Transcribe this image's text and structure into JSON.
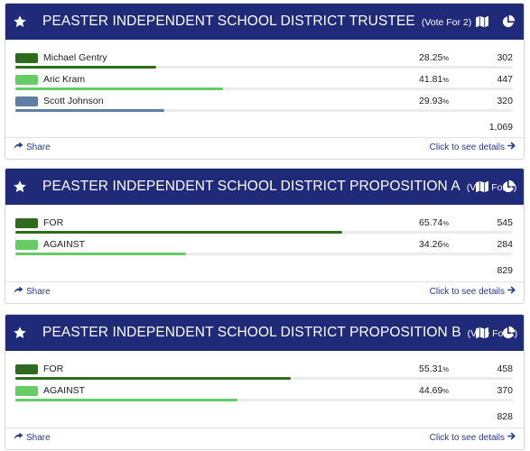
{
  "colors": {
    "header_bg": "#1f2a78",
    "dark_green": "#2f6b1f",
    "light_green": "#66cc66",
    "slate_blue": "#5f7fa3",
    "link": "#2a3a8a"
  },
  "icons": {
    "favorite": "star-icon",
    "map": "map-icon",
    "chart": "pie-chart-icon",
    "share": "share-arrow-icon",
    "details": "arrow-right-icon"
  },
  "races": [
    {
      "title": "PEASTER INDEPENDENT SCHOOL DISTRICT TRUSTEE",
      "vote_for": "(Vote For 2)",
      "candidates": [
        {
          "name": "Michael Gentry",
          "percent": "28.25",
          "percent_symbol": "%",
          "votes": "302",
          "bar_fraction": 0.2825,
          "color": "#2f6b1f"
        },
        {
          "name": "Aric Kram",
          "percent": "41.81",
          "percent_symbol": "%",
          "votes": "447",
          "bar_fraction": 0.4181,
          "color": "#66cc66"
        },
        {
          "name": "Scott Johnson",
          "percent": "29.93",
          "percent_symbol": "%",
          "votes": "320",
          "bar_fraction": 0.2993,
          "color": "#5f7fa3"
        }
      ],
      "total": "1,069",
      "share_label": "Share",
      "details_label": "Click to see details"
    },
    {
      "title": "PEASTER INDEPENDENT SCHOOL DISTRICT PROPOSITION A",
      "vote_for": "(Vote For 1)",
      "candidates": [
        {
          "name": "FOR",
          "percent": "65.74",
          "percent_symbol": "%",
          "votes": "545",
          "bar_fraction": 0.6574,
          "color": "#2f6b1f"
        },
        {
          "name": "AGAINST",
          "percent": "34.26",
          "percent_symbol": "%",
          "votes": "284",
          "bar_fraction": 0.3426,
          "color": "#66cc66"
        }
      ],
      "total": "829",
      "share_label": "Share",
      "details_label": "Click to see details"
    },
    {
      "title": "PEASTER INDEPENDENT SCHOOL DISTRICT PROPOSITION B",
      "vote_for": "(Vote For 1)",
      "candidates": [
        {
          "name": "FOR",
          "percent": "55.31",
          "percent_symbol": "%",
          "votes": "458",
          "bar_fraction": 0.5531,
          "color": "#2f6b1f"
        },
        {
          "name": "AGAINST",
          "percent": "44.69",
          "percent_symbol": "%",
          "votes": "370",
          "bar_fraction": 0.4469,
          "color": "#66cc66"
        }
      ],
      "total": "828",
      "share_label": "Share",
      "details_label": "Click to see details"
    }
  ]
}
